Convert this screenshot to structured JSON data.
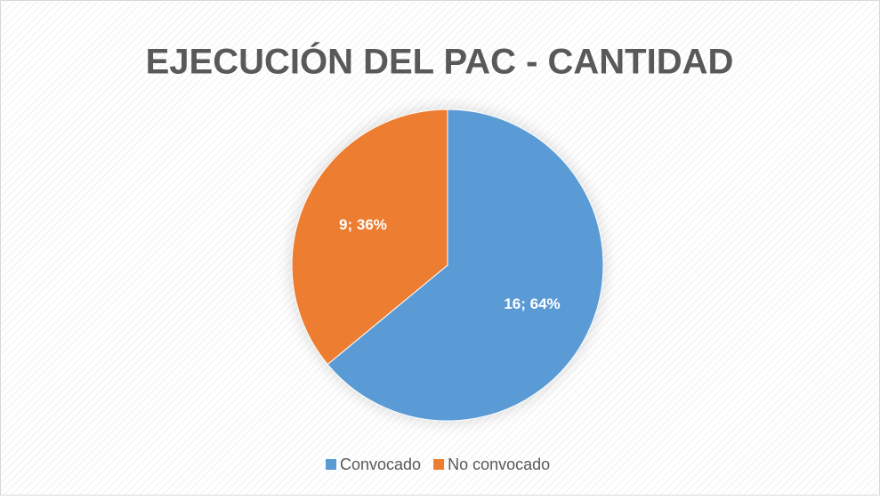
{
  "chart_data": {
    "type": "pie",
    "title": "EJECUCIÓN DEL PAC - CANTIDAD",
    "categories": [
      "Convocado",
      "No convocado"
    ],
    "values": [
      16,
      9
    ],
    "value_labels": [
      "16; 64%",
      "9; 36%"
    ],
    "colors": [
      "#5b9bd5",
      "#ed7d31"
    ],
    "legend": "bottom"
  }
}
